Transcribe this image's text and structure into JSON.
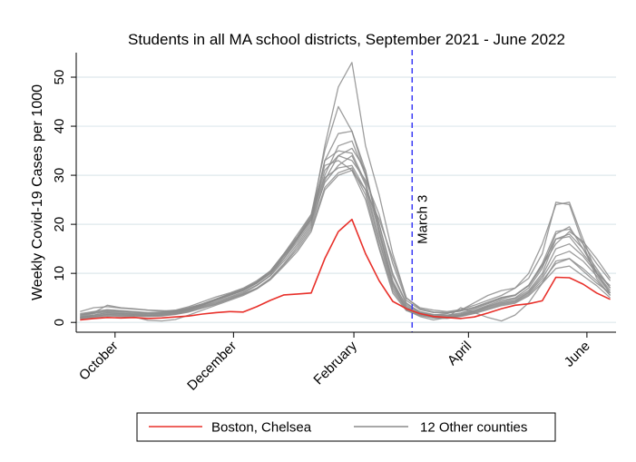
{
  "chart_data": {
    "type": "line",
    "title": "Students in all MA school districts, September 2021 - June 2022",
    "ylabel": "Weekly Covid-19 Cases per 1000",
    "xlabel": "",
    "ylim": [
      -2,
      55
    ],
    "y_ticks": [
      0,
      10,
      20,
      30,
      40,
      50
    ],
    "x_ticks": [
      "October",
      "December",
      "February",
      "April",
      "June"
    ],
    "grid": true,
    "legend_position": "bottom",
    "annotations": [
      {
        "text": "March 3",
        "x": "March 3",
        "style": "dashed vertical line"
      }
    ],
    "colors": {
      "boston": "#e8302a",
      "others": "#8c8c8c",
      "marker_line": "#3b3bf5",
      "grid": "#dde8ec"
    },
    "legend": [
      {
        "label": "Boston, Chelsea",
        "color": "#e8302a"
      },
      {
        "label": "12 Other counties",
        "color": "#8c8c8c"
      }
    ],
    "x_dates": [
      "2021-09-13",
      "2021-09-20",
      "2021-09-27",
      "2021-10-04",
      "2021-10-11",
      "2021-10-18",
      "2021-10-25",
      "2021-11-01",
      "2021-11-08",
      "2021-11-15",
      "2021-11-22",
      "2021-11-29",
      "2021-12-06",
      "2021-12-13",
      "2021-12-20",
      "2021-12-27",
      "2022-01-03",
      "2022-01-10",
      "2022-01-17",
      "2022-01-24",
      "2022-01-31",
      "2022-02-07",
      "2022-02-14",
      "2022-02-21",
      "2022-02-28",
      "2022-03-07",
      "2022-03-14",
      "2022-03-21",
      "2022-03-28",
      "2022-04-04",
      "2022-04-11",
      "2022-04-18",
      "2022-04-25",
      "2022-05-02",
      "2022-05-09",
      "2022-05-16",
      "2022-05-23",
      "2022-05-30",
      "2022-06-06",
      "2022-06-13"
    ],
    "series": [
      {
        "name": "Boston, Chelsea",
        "group": "boston",
        "values": [
          0.5,
          0.8,
          1.0,
          0.9,
          1.0,
          0.8,
          0.9,
          1.1,
          1.3,
          1.7,
          2.0,
          2.2,
          2.1,
          3.2,
          4.5,
          5.6,
          5.8,
          6.0,
          13.0,
          18.5,
          21.0,
          14.0,
          8.5,
          4.3,
          2.8,
          1.8,
          1.2,
          1.0,
          0.8,
          1.1,
          1.9,
          2.8,
          3.5,
          3.8,
          4.4,
          9.2,
          9.1,
          7.8,
          6.0,
          4.7
        ]
      },
      {
        "group": "other",
        "values": [
          1.5,
          2.0,
          3.5,
          3.0,
          2.8,
          2.5,
          2.4,
          2.2,
          2.6,
          3.5,
          4.5,
          5.5,
          6.5,
          8.0,
          10.0,
          13.0,
          17.0,
          21.0,
          36.0,
          48.0,
          53.0,
          36.0,
          26.0,
          14.0,
          5.0,
          3.0,
          2.5,
          2.2,
          2.6,
          3.5,
          4.5,
          5.5,
          7.0,
          10.0,
          16.0,
          24.0,
          24.5,
          17.0,
          10.0,
          6.0
        ]
      },
      {
        "group": "other",
        "values": [
          2.2,
          3.0,
          3.2,
          2.9,
          2.7,
          2.5,
          2.3,
          2.5,
          3.2,
          4.2,
          5.2,
          6.0,
          7.0,
          8.5,
          10.5,
          14.0,
          18.0,
          22.0,
          35.0,
          44.0,
          39.0,
          30.0,
          20.0,
          10.0,
          4.0,
          2.0,
          1.5,
          1.8,
          2.5,
          4.0,
          5.5,
          6.5,
          7.0,
          9.0,
          14.0,
          24.5,
          24.0,
          16.0,
          9.0,
          5.5
        ]
      },
      {
        "group": "other",
        "values": [
          1.0,
          1.5,
          2.0,
          1.8,
          1.6,
          1.4,
          1.5,
          1.8,
          2.4,
          3.2,
          4.0,
          5.0,
          6.0,
          7.5,
          9.5,
          12.5,
          16.0,
          20.0,
          33.0,
          38.5,
          39.0,
          31.0,
          18.0,
          8.0,
          3.5,
          2.0,
          1.5,
          1.4,
          1.8,
          2.5,
          3.5,
          4.5,
          5.0,
          7.0,
          11.0,
          18.0,
          19.5,
          15.0,
          10.0,
          7.5
        ]
      },
      {
        "group": "other",
        "values": [
          1.2,
          1.8,
          2.2,
          2.0,
          1.8,
          1.7,
          1.8,
          2.1,
          2.7,
          3.6,
          4.6,
          5.6,
          6.6,
          8.0,
          10.0,
          13.5,
          17.0,
          21.5,
          30.0,
          36.0,
          37.0,
          30.0,
          20.0,
          9.5,
          3.8,
          2.2,
          1.6,
          1.5,
          1.9,
          2.8,
          3.8,
          4.8,
          5.5,
          7.5,
          12.0,
          18.5,
          19.0,
          16.0,
          12.0,
          8.5
        ]
      },
      {
        "group": "other",
        "values": [
          0.8,
          1.2,
          1.6,
          1.5,
          1.4,
          1.3,
          1.4,
          1.7,
          2.2,
          3.0,
          3.8,
          4.8,
          5.8,
          7.0,
          9.0,
          12.0,
          15.5,
          19.5,
          29.0,
          34.0,
          35.5,
          31.0,
          19.0,
          8.5,
          3.2,
          1.8,
          1.3,
          1.2,
          1.6,
          2.3,
          3.3,
          4.2,
          4.8,
          6.5,
          10.0,
          17.0,
          18.0,
          15.0,
          11.0,
          7.0
        ]
      },
      {
        "group": "other",
        "values": [
          1.8,
          2.2,
          2.6,
          2.4,
          2.2,
          2.0,
          2.1,
          2.4,
          3.0,
          3.8,
          4.8,
          5.8,
          6.8,
          8.2,
          10.5,
          14.0,
          17.5,
          21.5,
          31.0,
          34.0,
          33.0,
          29.0,
          22.0,
          12.0,
          4.5,
          2.6,
          2.0,
          1.9,
          2.3,
          3.0,
          4.0,
          5.0,
          5.5,
          7.5,
          11.5,
          16.0,
          18.5,
          16.5,
          13.0,
          9.0
        ]
      },
      {
        "group": "other",
        "values": [
          1.0,
          1.3,
          1.7,
          1.6,
          1.5,
          1.4,
          1.6,
          1.9,
          2.5,
          3.3,
          4.2,
          5.2,
          6.2,
          7.6,
          9.6,
          13.0,
          16.5,
          20.5,
          28.5,
          32.0,
          34.0,
          28.0,
          17.0,
          7.5,
          3.0,
          1.7,
          1.2,
          1.1,
          1.5,
          2.2,
          3.2,
          4.0,
          4.5,
          6.2,
          9.5,
          15.0,
          16.0,
          13.5,
          10.0,
          6.5
        ]
      },
      {
        "group": "other",
        "values": [
          1.4,
          1.9,
          2.3,
          2.2,
          2.0,
          1.8,
          1.9,
          2.2,
          2.8,
          3.7,
          4.7,
          5.7,
          6.7,
          8.1,
          10.2,
          13.8,
          17.2,
          21.0,
          29.5,
          31.5,
          32.0,
          27.0,
          16.5,
          7.0,
          2.8,
          1.6,
          1.1,
          1.0,
          1.4,
          2.1,
          3.0,
          3.8,
          4.3,
          6.0,
          9.0,
          13.5,
          14.5,
          12.5,
          9.5,
          6.0
        ]
      },
      {
        "group": "other",
        "values": [
          0.9,
          1.2,
          1.5,
          1.4,
          1.3,
          1.2,
          1.3,
          1.6,
          2.1,
          2.9,
          3.7,
          4.7,
          5.7,
          6.9,
          8.8,
          11.8,
          15.0,
          19.0,
          27.5,
          30.5,
          31.5,
          26.0,
          15.5,
          6.5,
          2.6,
          1.5,
          1.0,
          0.9,
          1.3,
          1.9,
          2.8,
          3.6,
          4.1,
          5.7,
          8.5,
          12.0,
          13.0,
          11.0,
          8.5,
          5.5
        ]
      },
      {
        "group": "other",
        "values": [
          1.6,
          2.1,
          2.5,
          2.3,
          2.1,
          1.9,
          2.0,
          2.3,
          2.9,
          3.8,
          4.8,
          5.8,
          6.8,
          8.3,
          10.4,
          14.0,
          17.5,
          22.0,
          32.0,
          33.0,
          31.0,
          27.0,
          21.0,
          13.0,
          5.0,
          2.8,
          2.1,
          2.0,
          2.4,
          3.1,
          4.1,
          5.1,
          5.6,
          7.6,
          11.8,
          17.0,
          17.5,
          14.0,
          10.5,
          7.0
        ]
      },
      {
        "group": "other",
        "values": [
          0.7,
          1.0,
          1.3,
          1.2,
          1.1,
          0.4,
          0.3,
          0.6,
          1.5,
          2.5,
          3.5,
          4.5,
          5.5,
          6.8,
          8.7,
          11.5,
          14.5,
          18.5,
          27.0,
          30.0,
          31.0,
          25.0,
          15.0,
          6.0,
          2.4,
          1.4,
          0.9,
          0.8,
          1.2,
          1.8,
          2.6,
          3.4,
          3.9,
          5.4,
          8.0,
          11.0,
          11.5,
          9.5,
          7.5,
          5.0
        ]
      },
      {
        "group": "other",
        "values": [
          1.1,
          1.5,
          1.9,
          1.8,
          1.7,
          1.6,
          1.7,
          2.0,
          2.6,
          3.5,
          4.5,
          5.5,
          6.5,
          8.0,
          10.0,
          13.5,
          17.0,
          21.0,
          33.0,
          35.0,
          34.5,
          28.5,
          18.5,
          8.0,
          2.5,
          1.2,
          0.5,
          1.0,
          3.0,
          2.0,
          1.0,
          0.3,
          1.5,
          4.0,
          8.0,
          12.5,
          13.0,
          10.5,
          8.0,
          6.0
        ]
      }
    ]
  }
}
